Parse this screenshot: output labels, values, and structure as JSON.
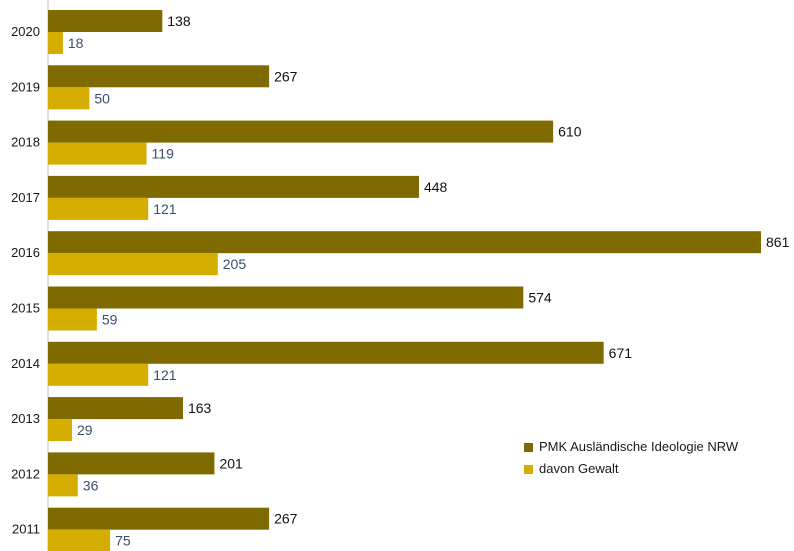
{
  "chart_data": {
    "type": "bar",
    "orientation": "horizontal",
    "title": "",
    "xlabel": "",
    "ylabel": "",
    "categories": [
      "2020",
      "2019",
      "2018",
      "2017",
      "2016",
      "2015",
      "2014",
      "2013",
      "2012",
      "2011"
    ],
    "series": [
      {
        "name": "PMK Ausländische Ideologie NRW",
        "color": "#7f6a00",
        "values": [
          138,
          267,
          610,
          448,
          861,
          574,
          671,
          163,
          201,
          267
        ]
      },
      {
        "name": "davon Gewalt",
        "color": "#d4ad00",
        "values": [
          18,
          50,
          119,
          121,
          205,
          59,
          121,
          29,
          36,
          75
        ]
      }
    ],
    "xlim": [
      0,
      861
    ],
    "grid": false,
    "legend_position": "bottom-right"
  }
}
